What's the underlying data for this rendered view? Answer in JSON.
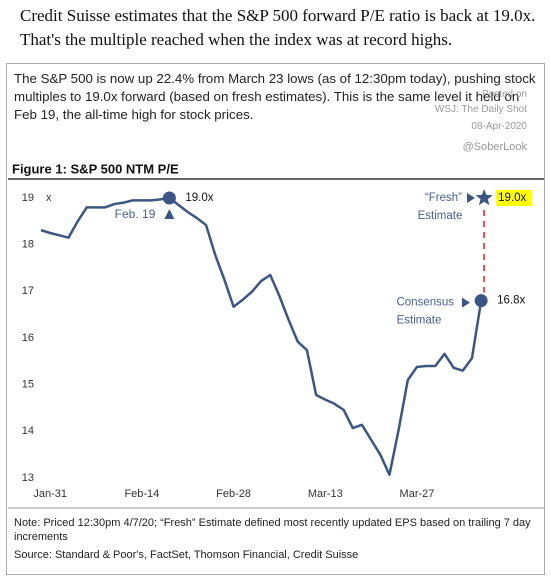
{
  "header": "Credit Suisse estimates that the S&P 500 forward P/E ratio is back at 19.0x. That's the multiple reached when the index was at record highs.",
  "intro": "The S&P 500 is now up 22.4% from March 23 lows (as of 12:30pm today), pushing stock multiples to 19.0x forward (based on fresh estimates). This is the same level it held on Feb 19, the all-time high for stock prices.",
  "watermark": [
    "Posted on",
    "WSJ: The Daily Shot",
    "08-Apr-2020"
  ],
  "handle": "@SoberLook",
  "note": "Note: Priced 12:30pm 4/7/20; “Fresh” Estimate defined most recently updated EPS based on trailing 7 day increments",
  "source": "Source: Standard & Poor's, FactSet, Thomson Financial, Credit Suisse",
  "chart_data": {
    "type": "line",
    "title": "Figure 1: S&P 500 NTM P/E",
    "y_unit": "x",
    "color": "#3b5584",
    "categories": [
      null,
      "Jan-31",
      null,
      null,
      null,
      null,
      null,
      null,
      null,
      null,
      null,
      "Feb-14",
      null,
      null,
      null,
      null,
      null,
      null,
      null,
      null,
      null,
      "Feb-28",
      null,
      null,
      null,
      null,
      null,
      null,
      null,
      null,
      null,
      "Mar-13",
      null,
      null,
      null,
      null,
      null,
      null,
      null,
      null,
      null,
      "Mar-27",
      null,
      null,
      null,
      null,
      null,
      null,
      null
    ],
    "values": [
      18.31,
      18.25,
      18.2,
      18.15,
      18.5,
      18.8,
      18.8,
      18.8,
      18.87,
      18.9,
      18.95,
      18.95,
      18.95,
      18.97,
      19.0,
      18.85,
      18.7,
      18.57,
      18.42,
      17.78,
      17.25,
      16.67,
      16.82,
      16.99,
      17.22,
      17.35,
      16.9,
      16.39,
      15.92,
      15.74,
      14.78,
      14.68,
      14.59,
      14.46,
      14.07,
      14.14,
      13.82,
      13.5,
      13.07,
      14.03,
      15.1,
      15.38,
      15.4,
      15.4,
      15.66,
      15.36,
      15.3,
      15.57,
      16.8
    ],
    "value_labels": [
      null,
      null,
      null,
      null,
      null,
      null,
      null,
      null,
      null,
      null,
      null,
      null,
      null,
      null,
      "19.0x",
      null,
      null,
      null,
      null,
      null,
      null,
      null,
      null,
      null,
      null,
      null,
      null,
      null,
      null,
      null,
      null,
      null,
      null,
      null,
      null,
      null,
      null,
      null,
      null,
      null,
      null,
      null,
      null,
      null,
      null,
      null,
      null,
      null,
      "16.8x"
    ],
    "ylim": [
      13,
      19
    ],
    "yticks": [
      13,
      14,
      15,
      16,
      17,
      18,
      19
    ],
    "peak_label": "Feb. 19",
    "consensus_label": [
      "Consensus",
      "Estimate"
    ],
    "fresh_estimate": {
      "label": [
        "“Fresh”",
        "Estimate"
      ],
      "value": 19.0,
      "value_label": "19.0x",
      "highlight": "#ffff00"
    }
  }
}
